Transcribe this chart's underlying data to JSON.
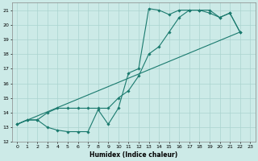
{
  "title": "",
  "xlabel": "Humidex (Indice chaleur)",
  "ylabel": "",
  "bg_color": "#cceae7",
  "grid_color": "#aad4d0",
  "line_color": "#1a7a6e",
  "xlim": [
    -0.5,
    23.5
  ],
  "ylim": [
    12,
    21.5
  ],
  "xticks": [
    0,
    1,
    2,
    3,
    4,
    5,
    6,
    7,
    8,
    9,
    10,
    11,
    12,
    13,
    14,
    15,
    16,
    17,
    18,
    19,
    20,
    21,
    22,
    23
  ],
  "yticks": [
    12,
    13,
    14,
    15,
    16,
    17,
    18,
    19,
    20,
    21
  ],
  "line1_x": [
    0,
    1,
    2,
    3,
    4,
    5,
    6,
    7,
    8,
    9,
    10,
    11,
    12,
    13,
    14,
    15,
    16,
    17,
    18,
    19,
    20,
    21,
    22
  ],
  "line1_y": [
    13.2,
    13.5,
    13.5,
    14.0,
    14.3,
    14.3,
    14.3,
    14.3,
    14.3,
    14.3,
    15.0,
    15.5,
    16.5,
    18.0,
    18.5,
    19.5,
    20.5,
    21.0,
    21.0,
    21.0,
    20.5,
    20.8,
    19.5
  ],
  "line2_x": [
    0,
    1,
    2,
    3,
    4,
    5,
    6,
    7,
    8,
    9,
    10,
    11,
    12,
    13,
    14,
    15,
    16,
    17,
    18,
    19,
    20,
    21,
    22
  ],
  "line2_y": [
    13.2,
    13.5,
    13.5,
    13.0,
    12.8,
    12.7,
    12.7,
    12.7,
    14.2,
    13.2,
    14.3,
    16.7,
    17.0,
    21.1,
    21.0,
    20.7,
    21.0,
    21.0,
    21.0,
    20.8,
    20.5,
    20.8,
    19.5
  ],
  "line3_x": [
    0,
    22
  ],
  "line3_y": [
    13.2,
    19.5
  ]
}
